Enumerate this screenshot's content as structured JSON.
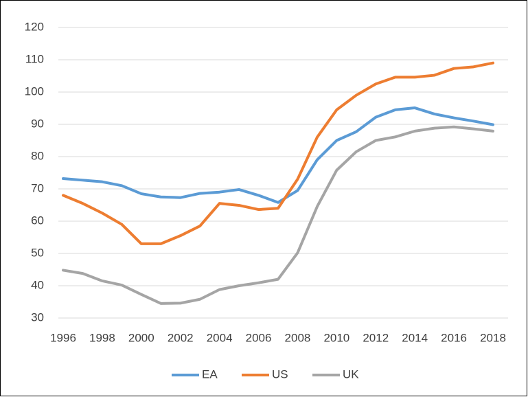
{
  "chart_data": {
    "type": "line",
    "x": [
      1996,
      1997,
      1998,
      1999,
      2000,
      2001,
      2002,
      2003,
      2004,
      2005,
      2006,
      2007,
      2008,
      2009,
      2010,
      2011,
      2012,
      2013,
      2014,
      2015,
      2016,
      2017,
      2018
    ],
    "xlim": [
      1996,
      2018
    ],
    "xticks": [
      1996,
      1998,
      2000,
      2002,
      2004,
      2006,
      2008,
      2010,
      2012,
      2014,
      2016,
      2018
    ],
    "ylim": [
      30,
      120
    ],
    "yticks": [
      30,
      40,
      50,
      60,
      70,
      80,
      90,
      100,
      110,
      120
    ],
    "grid": true,
    "legend": "bottom",
    "series": [
      {
        "name": "EA",
        "color": "#5b9bd5",
        "values": [
          73.2,
          72.7,
          72.2,
          71,
          68.5,
          67.5,
          67.3,
          68.6,
          69,
          69.8,
          68,
          65.8,
          69.5,
          79,
          85,
          87.7,
          92.2,
          94.5,
          95.1,
          93.2,
          92,
          91,
          89.9
        ]
      },
      {
        "name": "US",
        "color": "#ed7d31",
        "values": [
          68,
          65.5,
          62.5,
          59,
          53,
          53,
          55.5,
          58.5,
          65.5,
          64.9,
          63.6,
          64,
          73,
          86,
          94.5,
          99,
          102.5,
          104.6,
          104.6,
          105.2,
          107.3,
          107.8,
          109
        ]
      },
      {
        "name": "UK",
        "color": "#a5a5a5",
        "values": [
          44.8,
          43.8,
          41.5,
          40.2,
          37.3,
          34.5,
          34.6,
          35.8,
          38.8,
          40,
          40.9,
          42,
          50.2,
          64.5,
          75.8,
          81.5,
          85,
          86.1,
          87.9,
          88.8,
          89.2,
          88.6,
          87.9
        ]
      }
    ]
  }
}
